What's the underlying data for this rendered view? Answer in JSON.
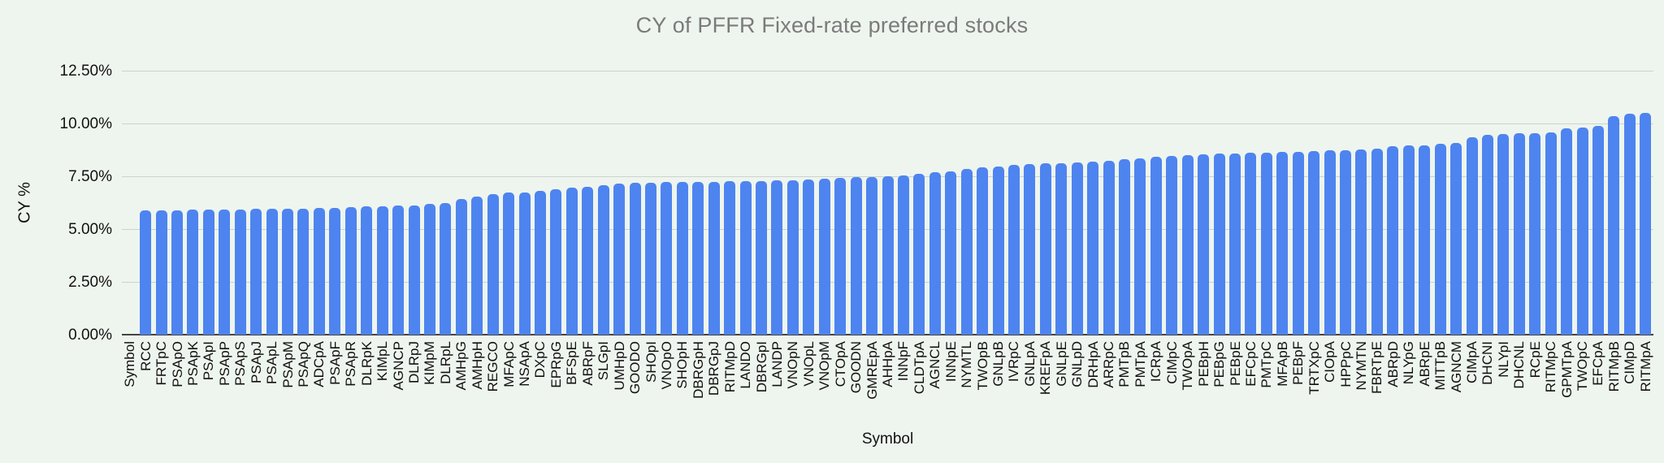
{
  "chart_data": {
    "type": "bar",
    "title": "CY of PFFR Fixed-rate preferred stocks",
    "xlabel": "Symbol",
    "ylabel": "CY %",
    "ylim": [
      0,
      12.5
    ],
    "y_ticks": [
      "0.00%",
      "2.50%",
      "5.00%",
      "7.50%",
      "10.00%",
      "12.50%"
    ],
    "y_tick_values": [
      0,
      2.5,
      5,
      7.5,
      10,
      12.5
    ],
    "grid": true,
    "legend_position": "none",
    "bar_color": "#4e84f0",
    "background_color": "#eef5ee",
    "categories": [
      "Symbol",
      "RCC",
      "FRTpC",
      "PSApO",
      "PSApK",
      "PSApI",
      "PSApP",
      "PSApS",
      "PSApJ",
      "PSApL",
      "PSApM",
      "PSApQ",
      "ADCpA",
      "PSApF",
      "PSApR",
      "DLRpK",
      "KIMpL",
      "AGNCP",
      "DLRpJ",
      "KIMpM",
      "DLRpL",
      "AMHpG",
      "AMHpH",
      "REGCO",
      "MFApC",
      "NSApA",
      "DXpC",
      "EPRpG",
      "BFSpE",
      "ABRpF",
      "SLGpI",
      "UMHpD",
      "GOODO",
      "SHOpI",
      "VNOpO",
      "SHOpH",
      "DBRGpH",
      "DBRGpJ",
      "RITMpD",
      "LANDO",
      "DBRGpI",
      "LANDP",
      "VNOpN",
      "VNOpL",
      "VNOpM",
      "CTOpA",
      "GOODN",
      "GMREpA",
      "AHHpA",
      "INNpF",
      "CLDTpA",
      "AGNCL",
      "INNpE",
      "NYMTL",
      "TWOpB",
      "GNLpB",
      "IVRpC",
      "GNLpA",
      "KREFpA",
      "GNLpE",
      "GNLpD",
      "DRHpA",
      "ARRpC",
      "PMTpB",
      "PMTpA",
      "ICRpA",
      "CIMpC",
      "TWOpA",
      "PEBpH",
      "PEBpG",
      "PEBpE",
      "EFCpC",
      "PMTpC",
      "MFApB",
      "PEBpF",
      "TRTXpC",
      "CIOpA",
      "HPPpC",
      "NYMTN",
      "FBRTpE",
      "ABRpD",
      "NLYpG",
      "ABRpE",
      "MITTpB",
      "AGNCM",
      "CIMpA",
      "DHCNI",
      "NLYpI",
      "DHCNL",
      "RCpE",
      "RITMpC",
      "GPMTpA",
      "TWOpC",
      "EFCpA",
      "RITMpB",
      "CIMpD",
      "RITMpA"
    ],
    "values": [
      null,
      5.87,
      5.88,
      5.9,
      5.91,
      5.92,
      5.93,
      5.94,
      5.95,
      5.96,
      5.97,
      5.98,
      6.0,
      6.01,
      6.02,
      6.06,
      6.08,
      6.11,
      6.13,
      6.18,
      6.22,
      6.42,
      6.54,
      6.65,
      6.72,
      6.75,
      6.81,
      6.9,
      6.96,
      7.0,
      7.09,
      7.15,
      7.19,
      7.21,
      7.22,
      7.23,
      7.24,
      7.25,
      7.26,
      7.27,
      7.28,
      7.3,
      7.32,
      7.35,
      7.38,
      7.42,
      7.45,
      7.47,
      7.51,
      7.55,
      7.6,
      7.7,
      7.75,
      7.83,
      7.92,
      7.98,
      8.02,
      8.06,
      8.1,
      8.12,
      8.15,
      8.21,
      8.25,
      8.3,
      8.33,
      8.41,
      8.46,
      8.5,
      8.52,
      8.56,
      8.59,
      8.61,
      8.63,
      8.65,
      8.67,
      8.69,
      8.72,
      8.74,
      8.76,
      8.82,
      8.93,
      8.96,
      8.98,
      9.05,
      9.08,
      9.35,
      9.45,
      9.5,
      9.52,
      9.55,
      9.57,
      9.78,
      9.82,
      9.9,
      10.36,
      10.45,
      10.5
    ]
  }
}
